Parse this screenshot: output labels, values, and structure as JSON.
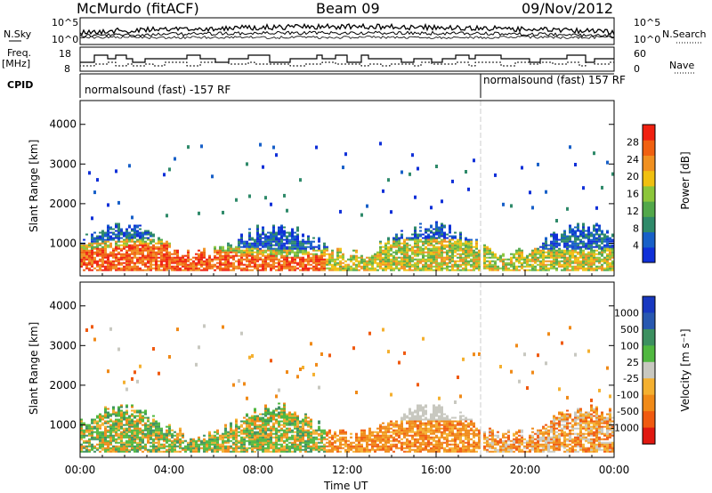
{
  "header": {
    "station": "McMurdo (fitACF)",
    "beam": "Beam 09",
    "date": "09/Nov/2012"
  },
  "left_labels": {
    "nsky": "N.Sky",
    "freq": "Freq.",
    "freq_unit": "[MHz]",
    "cpid": "CPID"
  },
  "right_labels": {
    "nsearch": "N.Search",
    "nave": "Nave"
  },
  "cpid_segments": [
    {
      "label": "normalsound (fast) -157 RF",
      "start_hour": 0
    },
    {
      "label": "normalsound (fast) 157 RF",
      "start_hour": 18
    }
  ],
  "colors": {
    "power": [
      "#1030d8",
      "#1860c8",
      "#2f8a6a",
      "#52a84a",
      "#8cc63a",
      "#f0c010",
      "#f09020",
      "#f06010",
      "#f02010"
    ],
    "velocity": [
      "#e01810",
      "#f05a10",
      "#f08a18",
      "#f4b030",
      "#c8c8c0",
      "#50b840",
      "#3c9060",
      "#2858b0",
      "#1838c0"
    ]
  },
  "chart_data": [
    {
      "type": "line",
      "name": "noise",
      "ylabel_left": "N.Sky",
      "ylabel_right": "N.Search",
      "yticks_left": [
        "10^5",
        "10^0"
      ],
      "yticks_right": [
        "10^5",
        "10^0"
      ]
    },
    {
      "type": "line",
      "name": "frequency-nave",
      "ylabel_left": "Freq. [MHz]",
      "ylabel_right": "Nave",
      "yticks_left": [
        "18",
        "8"
      ],
      "yticks_right": [
        "60",
        "0"
      ],
      "ylim_left": [
        8,
        18
      ],
      "ylim_right": [
        0,
        60
      ]
    },
    {
      "type": "heatmap",
      "name": "power",
      "ylabel": "Slant Range [km]",
      "yticks": [
        "1000",
        "2000",
        "3000",
        "4000"
      ],
      "ylim": [
        180,
        4600
      ],
      "colorbar_label": "Power [dB]",
      "colorbar_ticks": [
        "4",
        "8",
        "12",
        "16",
        "20",
        "24",
        "28"
      ],
      "colorbar_range": [
        0,
        32
      ]
    },
    {
      "type": "heatmap",
      "name": "velocity",
      "ylabel": "Slant Range [km]",
      "yticks": [
        "1000",
        "2000",
        "3000",
        "4000"
      ],
      "ylim": [
        180,
        4600
      ],
      "colorbar_label": "Velocity [m s⁻¹]",
      "colorbar_ticks": [
        "1000",
        "500",
        "100",
        "25",
        "-25",
        "-100",
        "-500",
        "-1000"
      ],
      "xlabel": "Time UT",
      "xticks": [
        "00:00",
        "04:00",
        "08:00",
        "12:00",
        "16:00",
        "20:00",
        "00:00"
      ],
      "xlim_hours": [
        0,
        24
      ]
    }
  ]
}
